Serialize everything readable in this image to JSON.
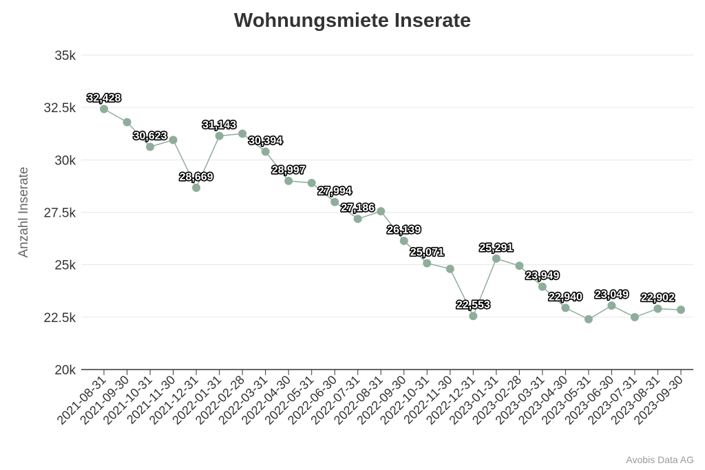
{
  "chart_data": {
    "type": "line",
    "title": "Wohnungsmiete Inserate",
    "xlabel": "",
    "ylabel": "Anzahl Inserate",
    "ylim": [
      20000,
      35000
    ],
    "y_ticks": [
      "20k",
      "22.5k",
      "25k",
      "27.5k",
      "30k",
      "32.5k",
      "35k"
    ],
    "grid": true,
    "legend": "none",
    "categories": [
      "2021-08-31",
      "2021-09-30",
      "2021-10-31",
      "2021-11-30",
      "2021-12-31",
      "2022-01-31",
      "2022-02-28",
      "2022-03-31",
      "2022-04-30",
      "2022-05-31",
      "2022-06-30",
      "2022-07-31",
      "2022-08-31",
      "2022-09-30",
      "2022-10-31",
      "2022-11-30",
      "2022-12-31",
      "2023-01-31",
      "2023-02-28",
      "2023-03-31",
      "2023-04-30",
      "2023-05-31",
      "2023-06-30",
      "2023-07-31",
      "2023-08-31",
      "2023-09-30"
    ],
    "values": [
      32428,
      31800,
      30623,
      30950,
      28669,
      31143,
      31250,
      30394,
      28997,
      28900,
      27994,
      27186,
      27550,
      26139,
      25071,
      24800,
      22553,
      25291,
      24950,
      23949,
      22940,
      22400,
      23049,
      22500,
      22902,
      22850
    ],
    "data_labels": [
      "32,428",
      "",
      "30,623",
      "",
      "28,669",
      "31,143",
      "",
      "30,394",
      "28,997",
      "",
      "27,994",
      "27,186",
      "",
      "26,139",
      "25,071",
      "",
      "22,553",
      "25,291",
      "",
      "23,949",
      "22,940",
      "",
      "23,049",
      "",
      "22,902",
      ""
    ],
    "colors": {
      "series": "#8fad9a",
      "grid": "#e6e6e6",
      "axis": "#333333"
    }
  },
  "credit": "Avobis Data AG"
}
